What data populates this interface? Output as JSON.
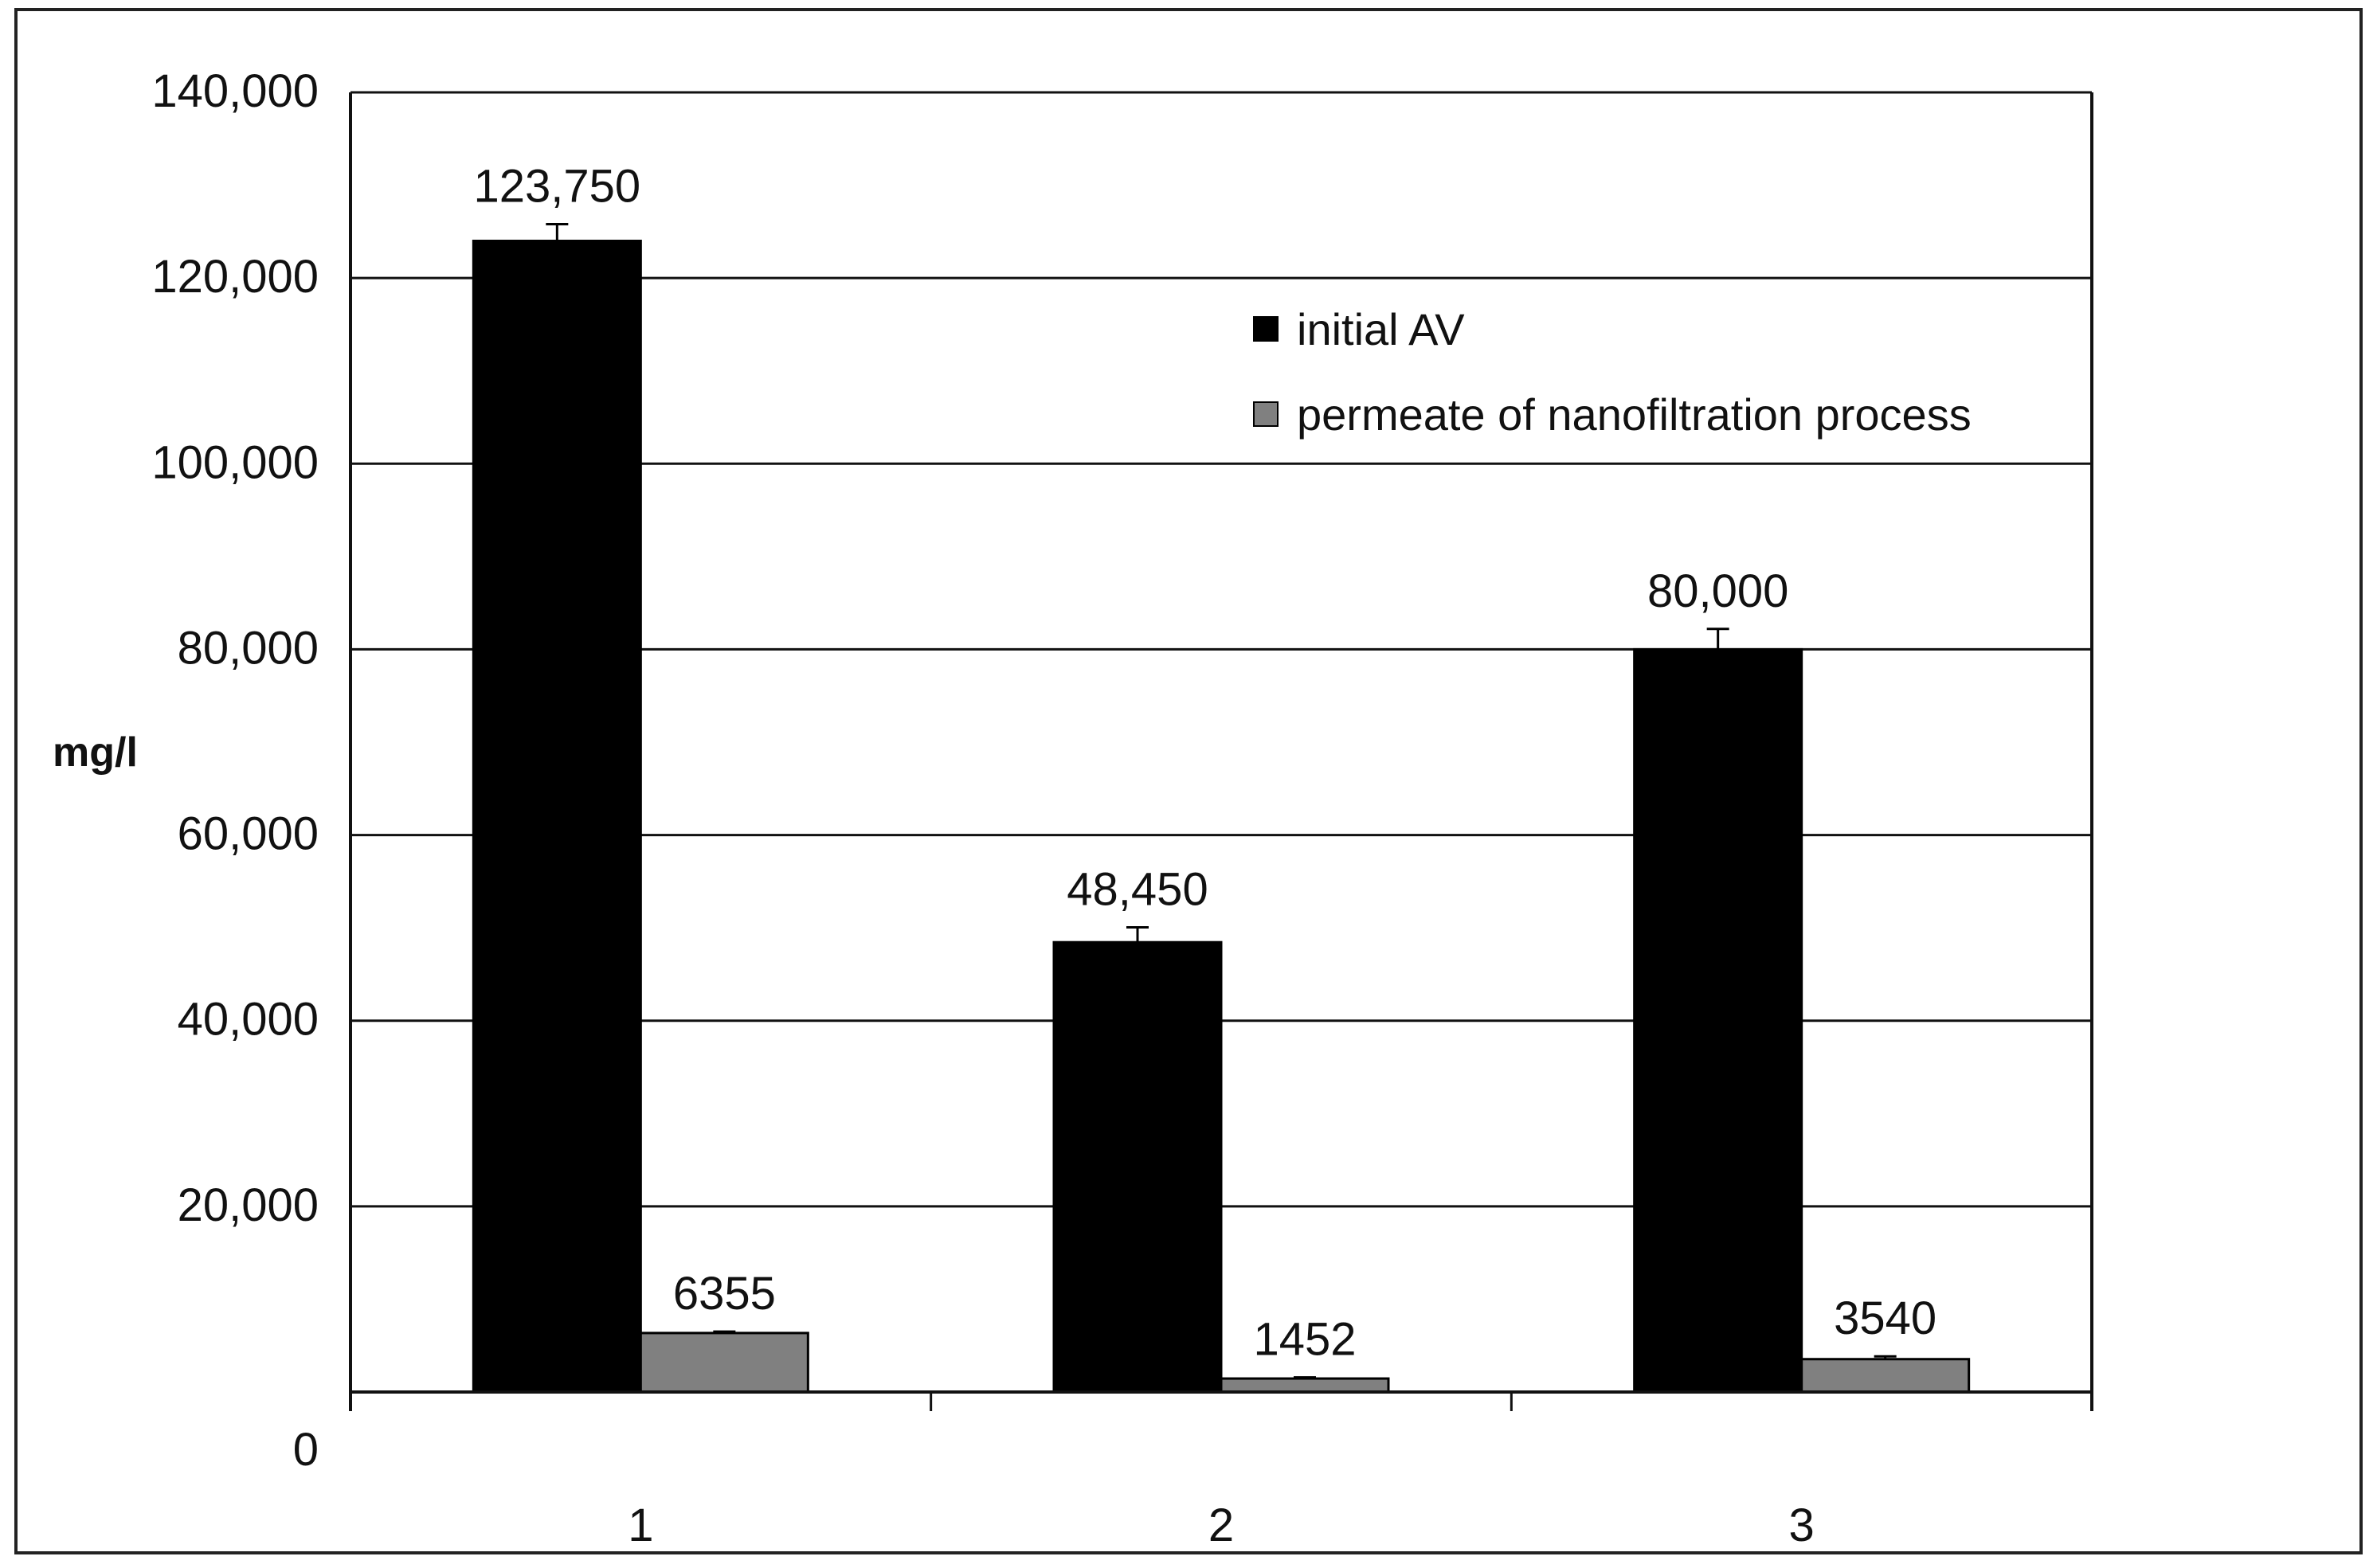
{
  "chart_data": {
    "type": "bar",
    "categories": [
      "1",
      "2",
      "3"
    ],
    "series": [
      {
        "name": "initial AV",
        "color": "#000000",
        "values": [
          123750,
          48450,
          80000
        ],
        "display_values": [
          124000,
          48450,
          80000
        ],
        "labels": [
          "123,750",
          "48,450",
          "80,000"
        ],
        "error": [
          1800,
          1600,
          2200
        ]
      },
      {
        "name": "permeate of nanofiltration process",
        "color": "#808080",
        "values": [
          6355,
          1452,
          3540
        ],
        "labels": [
          "6355",
          "1452",
          "3540"
        ],
        "error": [
          150,
          120,
          300
        ]
      }
    ],
    "ylabel": "mg/l",
    "xlabel": "",
    "ylim": [
      0,
      140000
    ],
    "yticks": [
      0,
      20000,
      40000,
      60000,
      80000,
      100000,
      120000,
      140000
    ],
    "ytick_labels": [
      "0",
      "20,000",
      "40,000",
      "60,000",
      "80,000",
      "100,000",
      "120,000",
      "140,000"
    ],
    "grid": true,
    "legend_position": "top-right"
  }
}
